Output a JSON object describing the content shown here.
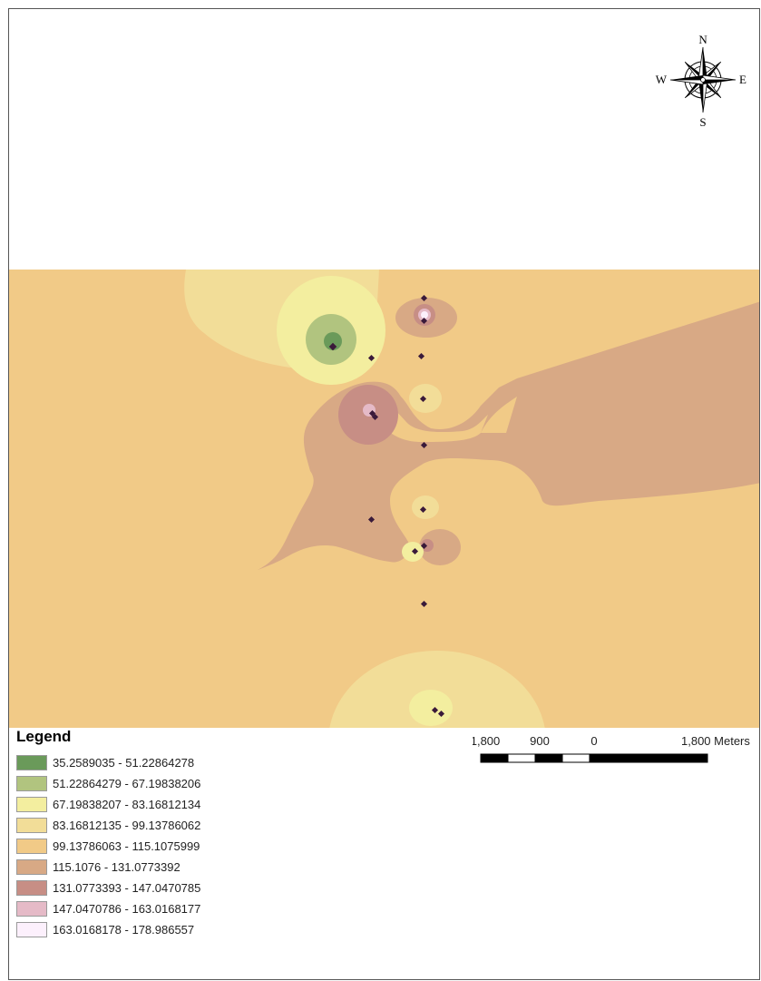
{
  "compass": {
    "north": "N",
    "south": "S",
    "east": "E",
    "west": "W"
  },
  "legend": {
    "title": "Legend",
    "items": [
      {
        "label": "35.2589035 - 51.22864278",
        "color": "#6a9a5a"
      },
      {
        "label": "51.22864279 - 67.19838206",
        "color": "#b1c47f"
      },
      {
        "label": "67.19838207 - 83.16812134",
        "color": "#f3ee9f"
      },
      {
        "label": "83.16812135 - 99.13786062",
        "color": "#f2dd98"
      },
      {
        "label": "99.13786063 - 115.1075999",
        "color": "#f1ca87"
      },
      {
        "label": "115.1076 - 131.0773392",
        "color": "#d8a985"
      },
      {
        "label": "131.0773393 - 147.0470785",
        "color": "#c78e85"
      },
      {
        "label": "147.0470786 - 163.0168177",
        "color": "#e5bac7"
      },
      {
        "label": "163.0168178 - 178.986557",
        "color": "#fcf0fc"
      }
    ]
  },
  "scalebar": {
    "labels": [
      "1,800",
      "900",
      "0",
      "1,800 Meters"
    ]
  },
  "colors": {
    "background_class": "#f1ca87",
    "point_marker": "#3a1a3a"
  }
}
